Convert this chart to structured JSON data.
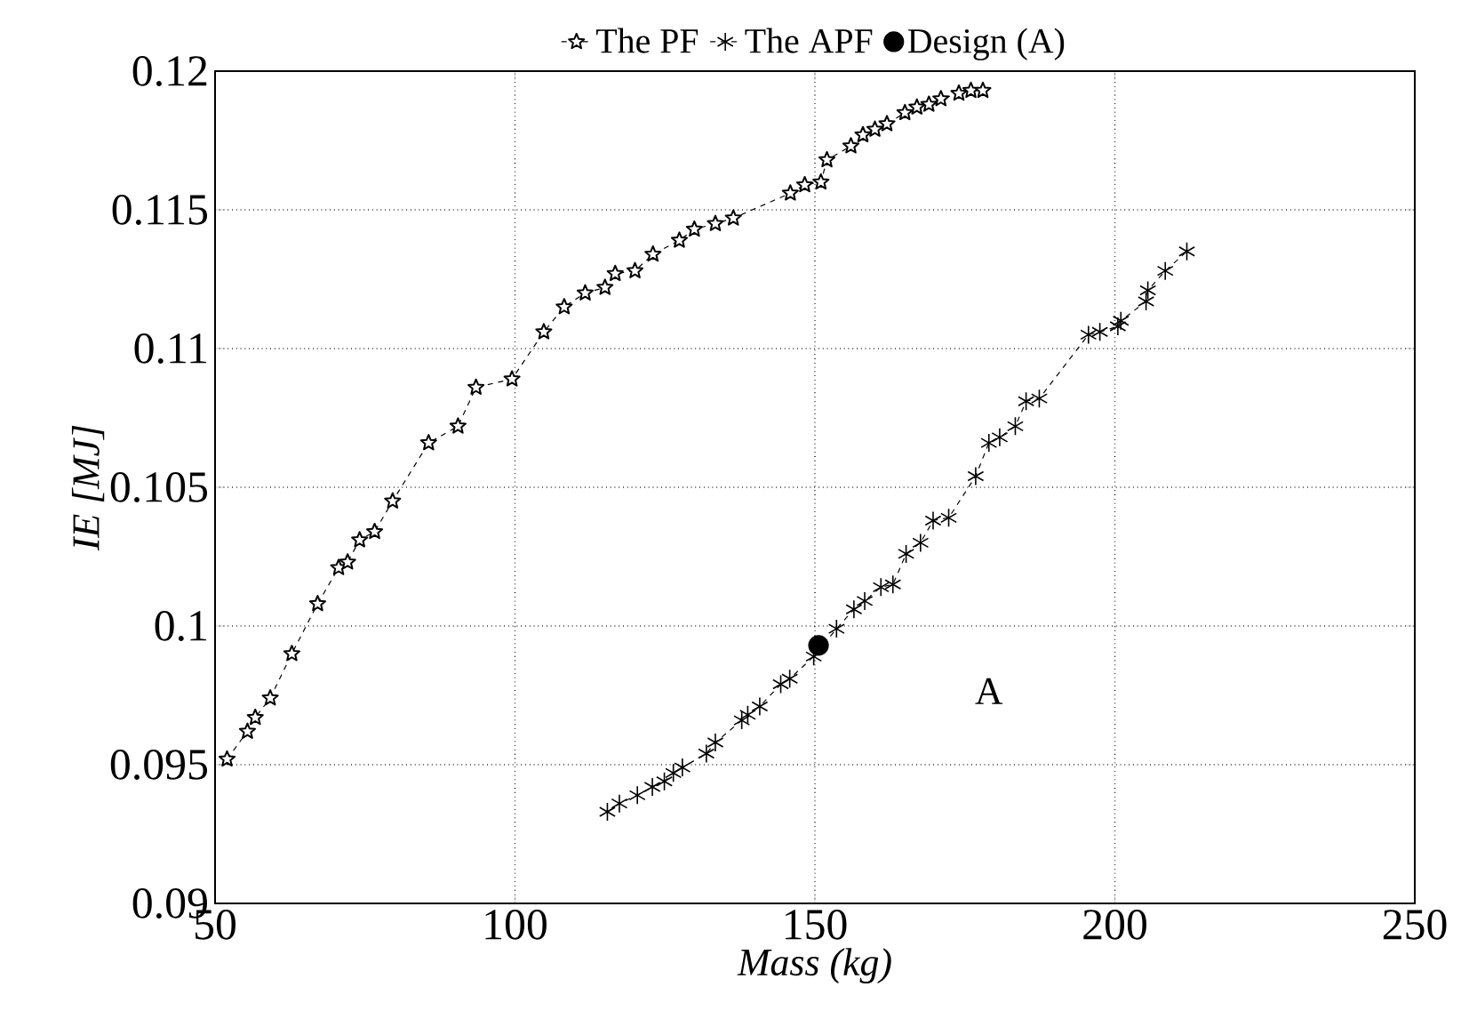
{
  "chart_data": {
    "type": "line",
    "xlabel": "Mass (kg)",
    "ylabel": "IE [MJ]",
    "xlim": [
      50,
      250
    ],
    "ylim": [
      0.09,
      0.12
    ],
    "xticks": [
      50,
      100,
      150,
      200,
      250
    ],
    "yticks": [
      0.09,
      0.095,
      0.1,
      0.105,
      0.11,
      0.115,
      0.12
    ],
    "grid": true,
    "legend": "top",
    "annotations": [
      "A"
    ],
    "series": [
      {
        "name": "The PF",
        "color": "#000000",
        "marker": "star",
        "line_style": "dashed",
        "x": [
          52,
          55.4,
          56.7,
          59.2,
          62.8,
          67.1,
          70.6,
          72.1,
          74.1,
          76.6,
          79.6,
          85.6,
          90.5,
          93.5,
          99.5,
          104.8,
          108.2,
          111.7,
          115,
          116.7,
          120,
          123,
          127.4,
          129.9,
          133.4,
          136.4,
          145.9,
          148.3,
          151,
          152,
          156,
          158,
          160,
          162,
          165,
          167,
          169,
          171,
          174,
          176,
          178
        ],
        "values": [
          0.0952,
          0.0962,
          0.0967,
          0.0974,
          0.099,
          0.1008,
          0.1021,
          0.1023,
          0.1031,
          0.1034,
          0.1045,
          0.1066,
          0.1072,
          0.1086,
          0.1089,
          0.1106,
          0.1115,
          0.112,
          0.1122,
          0.1127,
          0.1128,
          0.1134,
          0.1139,
          0.1143,
          0.1145,
          0.1147,
          0.1156,
          0.1159,
          0.116,
          0.1168,
          0.1173,
          0.1177,
          0.1179,
          0.1181,
          0.1185,
          0.1187,
          0.1188,
          0.119,
          0.1192,
          0.1193,
          0.1193
        ]
      },
      {
        "name": "The APF",
        "color": "#000000",
        "marker": "cross",
        "line_style": "dashed",
        "x": [
          115.4,
          117.4,
          120.4,
          122.9,
          124.9,
          126.4,
          127.9,
          131.9,
          133.4,
          137.8,
          138.8,
          140.8,
          144.3,
          145.8,
          149.8,
          153.6,
          156.5,
          158.3,
          161,
          163,
          165.2,
          167.6,
          169.7,
          172.3,
          176.8,
          179,
          180.8,
          183.4,
          185.2,
          187.4,
          195.6,
          197.5,
          200.5,
          201,
          205.2,
          205.5,
          208.4,
          212
        ],
        "values": [
          0.0933,
          0.0936,
          0.0939,
          0.0942,
          0.0944,
          0.0947,
          0.0949,
          0.0954,
          0.0958,
          0.0966,
          0.0968,
          0.0971,
          0.0979,
          0.0981,
          0.0989,
          0.0999,
          0.1006,
          0.1009,
          0.1014,
          0.1015,
          0.1026,
          0.103,
          0.1038,
          0.1039,
          0.1054,
          0.1066,
          0.1068,
          0.1072,
          0.1081,
          0.1082,
          0.1105,
          0.1106,
          0.1108,
          0.111,
          0.1117,
          0.1121,
          0.1128,
          0.1135
        ]
      },
      {
        "name": "Design (A)",
        "type": "scatter",
        "color": "#000000",
        "marker": "circle",
        "x": [
          150.6
        ],
        "values": [
          0.0993
        ]
      }
    ]
  }
}
